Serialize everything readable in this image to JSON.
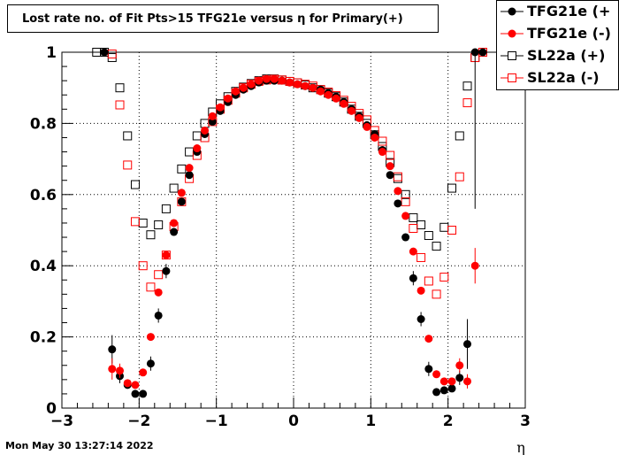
{
  "chart_data": {
    "type": "scatter",
    "title": "Lost rate no. of Fit Pts>15 TFG21e versus η for Primary(+)",
    "xlabel": "η",
    "ylabel": "",
    "xlim": [
      -3,
      3
    ],
    "ylim": [
      0,
      1.0
    ],
    "x_ticks": [
      -3,
      -2,
      -1,
      0,
      1,
      2,
      3
    ],
    "x_tick_labels": [
      "−3",
      "−2",
      "−1",
      "0",
      "1",
      "2",
      "3"
    ],
    "y_ticks": [
      0,
      0.2,
      0.4,
      0.6,
      0.8,
      1
    ],
    "y_tick_labels": [
      "0",
      "0.2",
      "0.4",
      "0.6",
      "0.8",
      "1"
    ],
    "grid": true,
    "legend_position": "top-right",
    "series": [
      {
        "name": "TFG21e (+",
        "color": "#000000",
        "marker": "filled-circle",
        "x": [
          -2.45,
          -2.35,
          -2.25,
          -2.15,
          -2.05,
          -1.95,
          -1.85,
          -1.75,
          -1.65,
          -1.55,
          -1.45,
          -1.35,
          -1.25,
          -1.15,
          -1.05,
          -0.95,
          -0.85,
          -0.75,
          -0.65,
          -0.55,
          -0.45,
          -0.35,
          -0.25,
          -0.15,
          -0.05,
          0.05,
          0.15,
          0.25,
          0.35,
          0.45,
          0.55,
          0.65,
          0.75,
          0.85,
          0.95,
          1.05,
          1.15,
          1.25,
          1.35,
          1.45,
          1.55,
          1.65,
          1.75,
          1.85,
          1.95,
          2.05,
          2.15,
          2.25,
          2.35,
          2.45
        ],
        "y": [
          1.0,
          0.165,
          0.09,
          0.065,
          0.04,
          0.04,
          0.125,
          0.26,
          0.385,
          0.495,
          0.58,
          0.655,
          0.72,
          0.77,
          0.805,
          0.835,
          0.86,
          0.88,
          0.895,
          0.905,
          0.915,
          0.92,
          0.92,
          0.92,
          0.915,
          0.91,
          0.905,
          0.9,
          0.895,
          0.885,
          0.875,
          0.86,
          0.84,
          0.82,
          0.795,
          0.77,
          0.725,
          0.655,
          0.575,
          0.48,
          0.365,
          0.25,
          0.11,
          0.045,
          0.05,
          0.055,
          0.085,
          0.18,
          1.0,
          1.0
        ],
        "y_err": [
          0,
          0.04,
          0.02,
          0.01,
          0.01,
          0.01,
          0.02,
          0.02,
          0.02,
          0.01,
          0.01,
          0.01,
          0.01,
          0.01,
          0.01,
          0.01,
          0.01,
          0.01,
          0.01,
          0.01,
          0.01,
          0.01,
          0.01,
          0.01,
          0.01,
          0.01,
          0.01,
          0.01,
          0.01,
          0.01,
          0.01,
          0.01,
          0.01,
          0.01,
          0.01,
          0.01,
          0.01,
          0.01,
          0.01,
          0.01,
          0.02,
          0.02,
          0.02,
          0.01,
          0.01,
          0.01,
          0.02,
          0.07,
          0.44,
          0
        ]
      },
      {
        "name": "TFG21e (-)",
        "color": "#ff0000",
        "marker": "filled-circle",
        "x": [
          -2.35,
          -2.25,
          -2.15,
          -2.05,
          -1.95,
          -1.85,
          -1.75,
          -1.65,
          -1.55,
          -1.45,
          -1.35,
          -1.25,
          -1.15,
          -1.05,
          -0.95,
          -0.85,
          -0.75,
          -0.65,
          -0.55,
          -0.45,
          -0.35,
          -0.25,
          -0.15,
          -0.05,
          0.05,
          0.15,
          0.25,
          0.35,
          0.45,
          0.55,
          0.65,
          0.75,
          0.85,
          0.95,
          1.05,
          1.15,
          1.25,
          1.35,
          1.45,
          1.55,
          1.65,
          1.75,
          1.85,
          1.95,
          2.05,
          2.15,
          2.25,
          2.35
        ],
        "y": [
          0.11,
          0.105,
          0.07,
          0.065,
          0.1,
          0.2,
          0.325,
          0.43,
          0.52,
          0.605,
          0.675,
          0.73,
          0.78,
          0.82,
          0.845,
          0.87,
          0.89,
          0.9,
          0.91,
          0.92,
          0.925,
          0.925,
          0.92,
          0.915,
          0.91,
          0.905,
          0.9,
          0.89,
          0.88,
          0.87,
          0.855,
          0.835,
          0.815,
          0.79,
          0.76,
          0.72,
          0.68,
          0.61,
          0.54,
          0.44,
          0.33,
          0.195,
          0.095,
          0.075,
          0.075,
          0.12,
          0.075,
          0.4
        ],
        "y_err": [
          0.03,
          0.02,
          0.01,
          0.01,
          0.01,
          0.01,
          0.01,
          0.01,
          0.01,
          0.01,
          0.01,
          0.01,
          0.01,
          0.01,
          0.01,
          0.01,
          0.01,
          0.01,
          0.01,
          0.01,
          0.01,
          0.01,
          0.01,
          0.01,
          0.01,
          0.01,
          0.01,
          0.01,
          0.01,
          0.01,
          0.01,
          0.01,
          0.01,
          0.01,
          0.01,
          0.01,
          0.01,
          0.01,
          0.01,
          0.01,
          0.01,
          0.01,
          0.01,
          0.01,
          0.01,
          0.02,
          0.02,
          0.05
        ]
      },
      {
        "name": "SL22a (+)",
        "color": "#000000",
        "marker": "open-square",
        "x": [
          -2.55,
          -2.45,
          -2.35,
          -2.25,
          -2.15,
          -2.05,
          -1.95,
          -1.85,
          -1.75,
          -1.65,
          -1.55,
          -1.45,
          -1.35,
          -1.25,
          -1.15,
          -1.05,
          -0.95,
          -0.85,
          -0.75,
          -0.65,
          -0.55,
          -0.45,
          -0.35,
          -0.25,
          -0.15,
          -0.05,
          0.05,
          0.15,
          0.25,
          0.35,
          0.45,
          0.55,
          0.65,
          0.75,
          0.85,
          0.95,
          1.05,
          1.15,
          1.25,
          1.35,
          1.45,
          1.55,
          1.65,
          1.75,
          1.85,
          1.95,
          2.05,
          2.15,
          2.25,
          2.35,
          2.45
        ],
        "y": [
          1.0,
          1.0,
          0.985,
          0.9,
          0.765,
          0.628,
          0.52,
          0.487,
          0.515,
          0.56,
          0.618,
          0.672,
          0.72,
          0.765,
          0.8,
          0.832,
          0.855,
          0.875,
          0.89,
          0.902,
          0.912,
          0.92,
          0.925,
          0.925,
          0.922,
          0.918,
          0.914,
          0.908,
          0.9,
          0.895,
          0.885,
          0.875,
          0.86,
          0.84,
          0.82,
          0.8,
          0.768,
          0.735,
          0.69,
          0.645,
          0.6,
          0.535,
          0.515,
          0.485,
          0.455,
          0.508,
          0.618,
          0.765,
          0.905,
          0.985,
          1.0
        ]
      },
      {
        "name": "SL22a (-)",
        "color": "#ff0000",
        "marker": "open-square",
        "x": [
          -2.35,
          -2.25,
          -2.15,
          -2.05,
          -1.95,
          -1.85,
          -1.75,
          -1.65,
          -1.55,
          -1.45,
          -1.35,
          -1.25,
          -1.15,
          -1.05,
          -0.95,
          -0.85,
          -0.75,
          -0.65,
          -0.55,
          -0.45,
          -0.35,
          -0.25,
          -0.15,
          -0.05,
          0.05,
          0.15,
          0.25,
          0.35,
          0.45,
          0.55,
          0.65,
          0.75,
          0.85,
          0.95,
          1.05,
          1.15,
          1.25,
          1.35,
          1.45,
          1.55,
          1.65,
          1.75,
          1.85,
          1.95,
          2.05,
          2.15,
          2.25,
          2.35,
          2.45
        ],
        "y": [
          0.995,
          0.852,
          0.683,
          0.524,
          0.4,
          0.34,
          0.375,
          0.43,
          0.51,
          0.58,
          0.645,
          0.71,
          0.76,
          0.805,
          0.84,
          0.865,
          0.885,
          0.9,
          0.91,
          0.918,
          0.922,
          0.924,
          0.922,
          0.918,
          0.914,
          0.91,
          0.905,
          0.895,
          0.888,
          0.878,
          0.865,
          0.848,
          0.828,
          0.81,
          0.78,
          0.75,
          0.71,
          0.65,
          0.58,
          0.505,
          0.423,
          0.357,
          0.32,
          0.368,
          0.5,
          0.65,
          0.858,
          0.985,
          1.0
        ]
      }
    ]
  },
  "legend": {
    "entries": [
      {
        "label": "TFG21e (+",
        "color": "#000000",
        "marker": "filled-circle"
      },
      {
        "label": "TFG21e (-)",
        "color": "#ff0000",
        "marker": "filled-circle"
      },
      {
        "label": "SL22a (+)",
        "color": "#000000",
        "marker": "open-square"
      },
      {
        "label": "SL22a (-)",
        "color": "#ff0000",
        "marker": "open-square"
      }
    ]
  },
  "footer": {
    "timestamp": "Mon May 30 13:27:14 2022"
  }
}
